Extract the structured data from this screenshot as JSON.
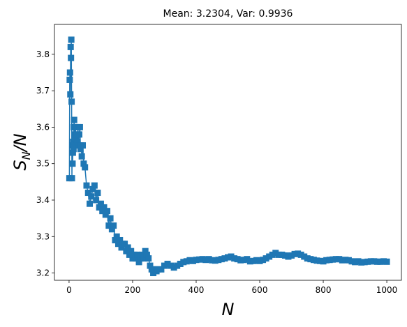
{
  "chart_data": {
    "type": "line",
    "title": "Mean: 3.2304, Var: 0.9936",
    "xlabel_main": "N",
    "ylabel_main": "S",
    "ylabel_sub": "N",
    "ylabel_tail": "/N",
    "xlim": [
      -46,
      1046
    ],
    "ylim": [
      3.18,
      3.882
    ],
    "xticks": [
      0,
      200,
      400,
      600,
      800,
      1000
    ],
    "xtick_labels": [
      "0",
      "200",
      "400",
      "600",
      "800",
      "1000"
    ],
    "yticks": [
      3.2,
      3.3,
      3.4,
      3.5,
      3.6,
      3.7,
      3.8
    ],
    "ytick_labels": [
      "3.2",
      "3.3",
      "3.4",
      "3.5",
      "3.6",
      "3.7",
      "3.8"
    ],
    "grid": false,
    "marker": "square",
    "colors": {
      "series": "#1f77b4",
      "axes": "#000000",
      "background": "#ffffff"
    },
    "series": [
      {
        "x": [
          1,
          2,
          3,
          4,
          5,
          6,
          7,
          8,
          9,
          10,
          11,
          12,
          13,
          14,
          15,
          16,
          17,
          18,
          19,
          20,
          22,
          24,
          26,
          28,
          30,
          32,
          34,
          36,
          38,
          40,
          43,
          46,
          50,
          55,
          60,
          65,
          70,
          75,
          80,
          85,
          90,
          95,
          100,
          105,
          110,
          115,
          120,
          125,
          130,
          135,
          140,
          145,
          150,
          155,
          160,
          165,
          170,
          175,
          180,
          185,
          190,
          195,
          200,
          205,
          210,
          215,
          220,
          225,
          230,
          235,
          240,
          245,
          250,
          255,
          260,
          265,
          270,
          275,
          280,
          290,
          300,
          310,
          320,
          330,
          340,
          350,
          360,
          370,
          380,
          390,
          400,
          410,
          420,
          430,
          440,
          450,
          460,
          470,
          480,
          490,
          500,
          510,
          520,
          530,
          540,
          550,
          560,
          570,
          580,
          590,
          600,
          610,
          620,
          630,
          640,
          650,
          660,
          670,
          680,
          690,
          700,
          710,
          720,
          730,
          740,
          750,
          760,
          770,
          780,
          790,
          800,
          810,
          820,
          830,
          840,
          850,
          860,
          870,
          880,
          890,
          900,
          910,
          920,
          930,
          940,
          950,
          960,
          970,
          980,
          990,
          1000
        ],
        "y": [
          3.46,
          3.73,
          3.75,
          3.69,
          3.82,
          3.79,
          3.84,
          3.67,
          3.46,
          3.55,
          3.5,
          3.53,
          3.56,
          3.54,
          3.6,
          3.62,
          3.57,
          3.6,
          3.58,
          3.6,
          3.55,
          3.58,
          3.56,
          3.6,
          3.55,
          3.58,
          3.6,
          3.54,
          3.55,
          3.52,
          3.55,
          3.5,
          3.49,
          3.44,
          3.42,
          3.39,
          3.41,
          3.43,
          3.44,
          3.4,
          3.42,
          3.38,
          3.39,
          3.37,
          3.38,
          3.36,
          3.37,
          3.33,
          3.35,
          3.32,
          3.33,
          3.29,
          3.3,
          3.28,
          3.29,
          3.27,
          3.28,
          3.28,
          3.26,
          3.27,
          3.25,
          3.26,
          3.24,
          3.25,
          3.24,
          3.25,
          3.23,
          3.24,
          3.25,
          3.24,
          3.26,
          3.25,
          3.24,
          3.22,
          3.21,
          3.2,
          3.21,
          3.205,
          3.21,
          3.21,
          3.22,
          3.225,
          3.22,
          3.215,
          3.22,
          3.225,
          3.23,
          3.232,
          3.235,
          3.233,
          3.236,
          3.237,
          3.238,
          3.236,
          3.238,
          3.235,
          3.234,
          3.236,
          3.238,
          3.24,
          3.243,
          3.245,
          3.24,
          3.238,
          3.235,
          3.236,
          3.238,
          3.232,
          3.233,
          3.235,
          3.233,
          3.236,
          3.24,
          3.245,
          3.25,
          3.255,
          3.25,
          3.25,
          3.248,
          3.245,
          3.248,
          3.252,
          3.253,
          3.25,
          3.245,
          3.24,
          3.238,
          3.236,
          3.234,
          3.233,
          3.232,
          3.235,
          3.236,
          3.237,
          3.238,
          3.238,
          3.235,
          3.236,
          3.235,
          3.232,
          3.23,
          3.232,
          3.229,
          3.23,
          3.231,
          3.232,
          3.232,
          3.231,
          3.231,
          3.232,
          3.231
        ]
      }
    ]
  }
}
